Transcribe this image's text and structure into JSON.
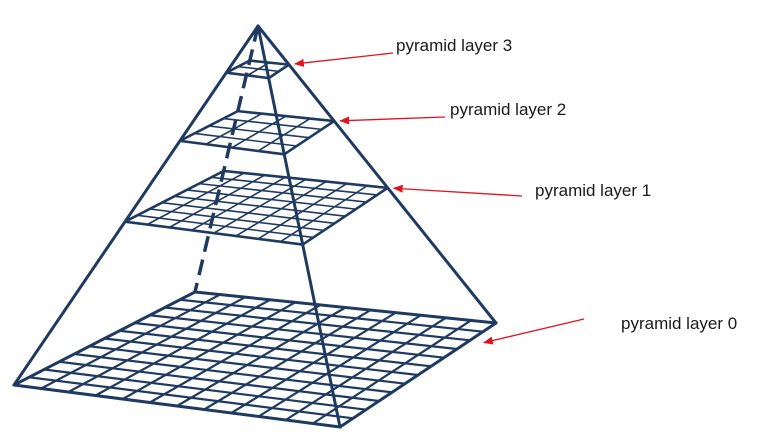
{
  "colors": {
    "stroke": "#1f3a60",
    "arrow": "#e0141e",
    "text": "#1a1a1a",
    "background": "#ffffff"
  },
  "layers": [
    {
      "label": "pyramid layer 3",
      "grid": 2
    },
    {
      "label": "pyramid layer 2",
      "grid": 4
    },
    {
      "label": "pyramid layer 1",
      "grid": 8
    },
    {
      "label": "pyramid layer 0",
      "grid": 12
    }
  ]
}
